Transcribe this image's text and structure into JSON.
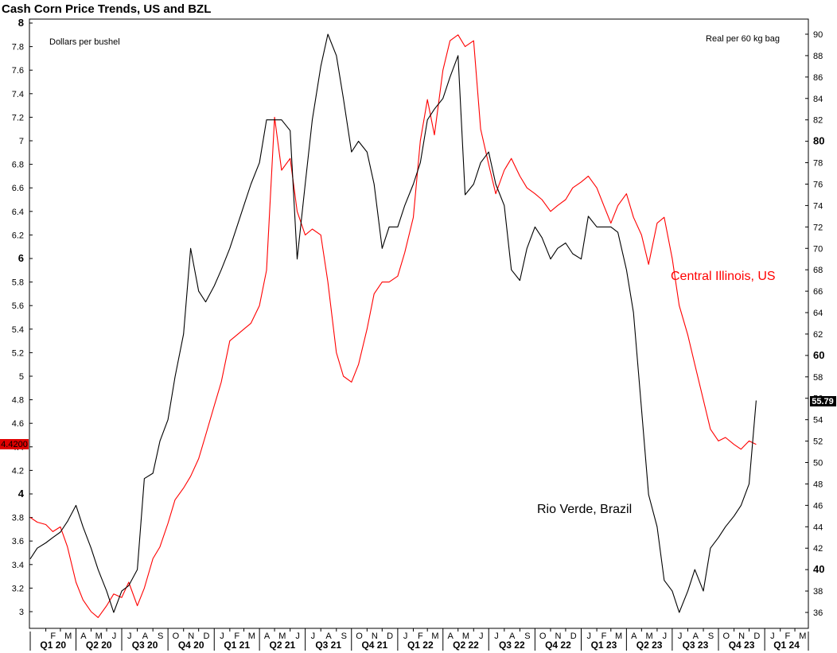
{
  "chart_data": {
    "type": "line",
    "title": "Cash Corn Price Trends, US and BZL",
    "left_axis_label": "Dollars per bushel",
    "right_axis_label": "Real per 60 kg bag",
    "left_axis": {
      "ylim": [
        2.9,
        8.0
      ],
      "ticks": [
        "3",
        "3.2",
        "3.4",
        "3.6",
        "3.8",
        "4",
        "4.2",
        "4.4",
        "4.6",
        "4.8",
        "5",
        "5.2",
        "5.4",
        "5.6",
        "5.8",
        "6",
        "6.2",
        "6.4",
        "6.6",
        "6.8",
        "7",
        "7.2",
        "7.4",
        "7.6",
        "7.8",
        "8"
      ],
      "bold_ticks": [
        "4",
        "6",
        "8"
      ]
    },
    "right_axis": {
      "ylim": [
        34.7,
        91.5
      ],
      "ticks": [
        "36",
        "38",
        "40",
        "42",
        "44",
        "46",
        "48",
        "50",
        "52",
        "54",
        "56",
        "58",
        "60",
        "62",
        "64",
        "66",
        "68",
        "70",
        "72",
        "74",
        "76",
        "78",
        "80",
        "82",
        "84",
        "86",
        "88",
        "90"
      ],
      "bold_ticks": [
        "40",
        "60",
        "80"
      ]
    },
    "last_value_tags": {
      "left": "4.4200",
      "right": "55.79"
    },
    "x_axis": {
      "start": "2020-01-01",
      "end": "2024-03-31",
      "month_labels": [
        "F",
        "M",
        "A",
        "M",
        "J",
        "J",
        "A",
        "S",
        "O",
        "N",
        "D",
        "J",
        "F",
        "M",
        "A",
        "M",
        "J",
        "J",
        "A",
        "S",
        "O",
        "N",
        "D",
        "J",
        "F",
        "M",
        "A",
        "M",
        "J",
        "J",
        "A",
        "S",
        "O",
        "N",
        "D",
        "J",
        "F",
        "M",
        "A",
        "M",
        "J",
        "J",
        "A",
        "S",
        "O",
        "N",
        "D",
        "J",
        "F",
        "M"
      ],
      "quarter_labels": [
        "Q1 20",
        "Q2 20",
        "Q3 20",
        "Q4 20",
        "Q1 21",
        "Q2 21",
        "Q3 21",
        "Q4 21",
        "Q1 22",
        "Q2 22",
        "Q3 22",
        "Q4 22",
        "Q1 23",
        "Q2 23",
        "Q3 23",
        "Q4 23",
        "Q1 24"
      ]
    },
    "series": [
      {
        "name": "Central Illinois, US",
        "axis": "left",
        "color": "#ff0000",
        "x": [
          "2020-01-01",
          "2020-01-15",
          "2020-02-01",
          "2020-02-15",
          "2020-03-01",
          "2020-03-15",
          "2020-04-01",
          "2020-04-15",
          "2020-05-01",
          "2020-05-15",
          "2020-06-01",
          "2020-06-15",
          "2020-07-01",
          "2020-07-15",
          "2020-08-01",
          "2020-08-15",
          "2020-09-01",
          "2020-09-15",
          "2020-10-01",
          "2020-10-15",
          "2020-11-01",
          "2020-11-15",
          "2020-12-01",
          "2020-12-15",
          "2021-01-01",
          "2021-01-15",
          "2021-02-01",
          "2021-02-15",
          "2021-03-01",
          "2021-03-15",
          "2021-04-01",
          "2021-04-15",
          "2021-05-01",
          "2021-05-15",
          "2021-06-01",
          "2021-06-15",
          "2021-07-01",
          "2021-07-15",
          "2021-08-01",
          "2021-08-15",
          "2021-09-01",
          "2021-09-15",
          "2021-10-01",
          "2021-10-15",
          "2021-11-01",
          "2021-11-15",
          "2021-12-01",
          "2021-12-15",
          "2022-01-01",
          "2022-01-15",
          "2022-02-01",
          "2022-02-15",
          "2022-03-01",
          "2022-03-15",
          "2022-04-01",
          "2022-04-15",
          "2022-05-01",
          "2022-05-15",
          "2022-06-01",
          "2022-06-15",
          "2022-07-01",
          "2022-07-15",
          "2022-08-01",
          "2022-08-15",
          "2022-09-01",
          "2022-09-15",
          "2022-10-01",
          "2022-10-15",
          "2022-11-01",
          "2022-11-15",
          "2022-12-01",
          "2022-12-15",
          "2023-01-01",
          "2023-01-15",
          "2023-02-01",
          "2023-02-15",
          "2023-03-01",
          "2023-03-15",
          "2023-04-01",
          "2023-04-15",
          "2023-05-01",
          "2023-05-15",
          "2023-06-01",
          "2023-06-15",
          "2023-07-01",
          "2023-07-15",
          "2023-08-01",
          "2023-08-15",
          "2023-09-01",
          "2023-09-15",
          "2023-10-01",
          "2023-10-15",
          "2023-11-01",
          "2023-11-15",
          "2023-12-01",
          "2023-12-15"
        ],
        "y": [
          3.8,
          3.76,
          3.74,
          3.68,
          3.72,
          3.55,
          3.25,
          3.1,
          3.0,
          2.95,
          3.05,
          3.15,
          3.12,
          3.25,
          3.05,
          3.2,
          3.45,
          3.55,
          3.75,
          3.95,
          4.05,
          4.15,
          4.3,
          4.5,
          4.75,
          4.95,
          5.3,
          5.35,
          5.4,
          5.45,
          5.6,
          5.9,
          7.2,
          6.75,
          6.85,
          6.4,
          6.2,
          6.25,
          6.2,
          5.8,
          5.2,
          5.0,
          4.95,
          5.1,
          5.4,
          5.7,
          5.8,
          5.8,
          5.85,
          6.05,
          6.35,
          7.0,
          7.35,
          7.05,
          7.6,
          7.85,
          7.9,
          7.8,
          7.85,
          7.1,
          6.8,
          6.55,
          6.75,
          6.85,
          6.7,
          6.6,
          6.55,
          6.5,
          6.4,
          6.45,
          6.5,
          6.6,
          6.65,
          6.7,
          6.6,
          6.45,
          6.3,
          6.45,
          6.55,
          6.35,
          6.2,
          5.95,
          6.3,
          6.35,
          6.0,
          5.6,
          5.35,
          5.1,
          4.8,
          4.55,
          4.45,
          4.48,
          4.42,
          4.38,
          4.45,
          4.42
        ]
      },
      {
        "name": "Rio Verde, Brazil",
        "axis": "right",
        "color": "#000000",
        "x": [
          "2020-01-01",
          "2020-01-15",
          "2020-02-01",
          "2020-02-15",
          "2020-03-01",
          "2020-03-15",
          "2020-04-01",
          "2020-04-15",
          "2020-05-01",
          "2020-05-15",
          "2020-06-01",
          "2020-06-15",
          "2020-07-01",
          "2020-07-15",
          "2020-08-01",
          "2020-08-15",
          "2020-09-01",
          "2020-09-15",
          "2020-10-01",
          "2020-10-15",
          "2020-11-01",
          "2020-11-15",
          "2020-12-01",
          "2020-12-15",
          "2021-01-01",
          "2021-01-15",
          "2021-02-01",
          "2021-02-15",
          "2021-03-01",
          "2021-03-15",
          "2021-04-01",
          "2021-04-15",
          "2021-05-01",
          "2021-05-15",
          "2021-06-01",
          "2021-06-15",
          "2021-07-01",
          "2021-07-15",
          "2021-08-01",
          "2021-08-15",
          "2021-09-01",
          "2021-09-15",
          "2021-10-01",
          "2021-10-15",
          "2021-11-01",
          "2021-11-15",
          "2021-12-01",
          "2021-12-15",
          "2022-01-01",
          "2022-01-15",
          "2022-02-01",
          "2022-02-15",
          "2022-03-01",
          "2022-03-15",
          "2022-04-01",
          "2022-04-15",
          "2022-05-01",
          "2022-05-15",
          "2022-06-01",
          "2022-06-15",
          "2022-07-01",
          "2022-07-15",
          "2022-08-01",
          "2022-08-15",
          "2022-09-01",
          "2022-09-15",
          "2022-10-01",
          "2022-10-15",
          "2022-11-01",
          "2022-11-15",
          "2022-12-01",
          "2022-12-15",
          "2023-01-01",
          "2023-01-15",
          "2023-02-01",
          "2023-02-15",
          "2023-03-01",
          "2023-03-15",
          "2023-04-01",
          "2023-04-15",
          "2023-05-01",
          "2023-05-15",
          "2023-06-01",
          "2023-06-15",
          "2023-07-01",
          "2023-07-15",
          "2023-08-01",
          "2023-08-15",
          "2023-09-01",
          "2023-09-15",
          "2023-10-01",
          "2023-10-15",
          "2023-11-01",
          "2023-11-15",
          "2023-12-01",
          "2023-12-15"
        ],
        "y": [
          41.0,
          42.0,
          42.5,
          43.0,
          43.5,
          44.5,
          46.0,
          44.0,
          42.0,
          40.0,
          38.0,
          36.0,
          38.0,
          38.5,
          40.0,
          48.5,
          49.0,
          52.0,
          54.0,
          58.0,
          62.0,
          70.0,
          66.0,
          65.0,
          66.5,
          68.0,
          70.0,
          72.0,
          74.0,
          76.0,
          78.0,
          82.0,
          82.0,
          82.0,
          81.0,
          69.0,
          76.0,
          82.0,
          87.0,
          90.0,
          88.0,
          84.0,
          79.0,
          80.0,
          79.0,
          76.0,
          70.0,
          72.0,
          72.0,
          74.0,
          76.0,
          78.0,
          82.0,
          83.0,
          84.0,
          86.0,
          88.0,
          75.0,
          76.0,
          78.0,
          79.0,
          76.0,
          74.0,
          68.0,
          67.0,
          70.0,
          72.0,
          71.0,
          69.0,
          70.0,
          70.5,
          69.5,
          69.0,
          73.0,
          72.0,
          72.0,
          72.0,
          71.5,
          68.0,
          64.0,
          55.0,
          47.0,
          44.0,
          39.0,
          38.0,
          36.0,
          38.0,
          40.0,
          38.0,
          42.0,
          43.0,
          44.0,
          45.0,
          46.0,
          48.0,
          55.79
        ]
      }
    ],
    "annotations": {
      "us": "Central Illinois, US",
      "brazil": "Rio Verde, Brazil"
    }
  }
}
